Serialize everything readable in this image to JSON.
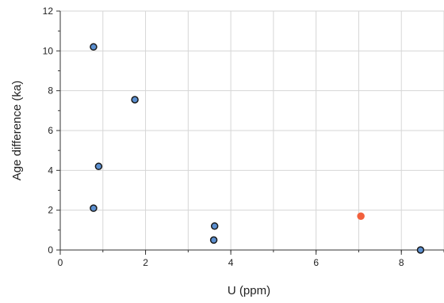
{
  "chart_data": {
    "type": "scatter",
    "title": "",
    "xlabel": "U (ppm)",
    "ylabel": "Age difference (ka)",
    "xlim": [
      0,
      9
    ],
    "ylim": [
      0,
      12
    ],
    "x_ticks": [
      0,
      2,
      4,
      6,
      8
    ],
    "y_ticks": [
      0,
      2,
      4,
      6,
      8,
      10,
      12
    ],
    "grid": true,
    "series": [
      {
        "color": "#5b8fd0",
        "edge_color": "#1a1a1a",
        "points": [
          {
            "x": 0.78,
            "y": 10.2
          },
          {
            "x": 1.75,
            "y": 7.55
          },
          {
            "x": 0.9,
            "y": 4.2
          },
          {
            "x": 0.78,
            "y": 2.1
          },
          {
            "x": 3.62,
            "y": 1.2
          },
          {
            "x": 3.6,
            "y": 0.5
          },
          {
            "x": 8.45,
            "y": 0.0
          }
        ]
      },
      {
        "color": "#f2603c",
        "edge_color": "#f2603c",
        "points": [
          {
            "x": 7.05,
            "y": 1.7
          }
        ]
      }
    ]
  }
}
